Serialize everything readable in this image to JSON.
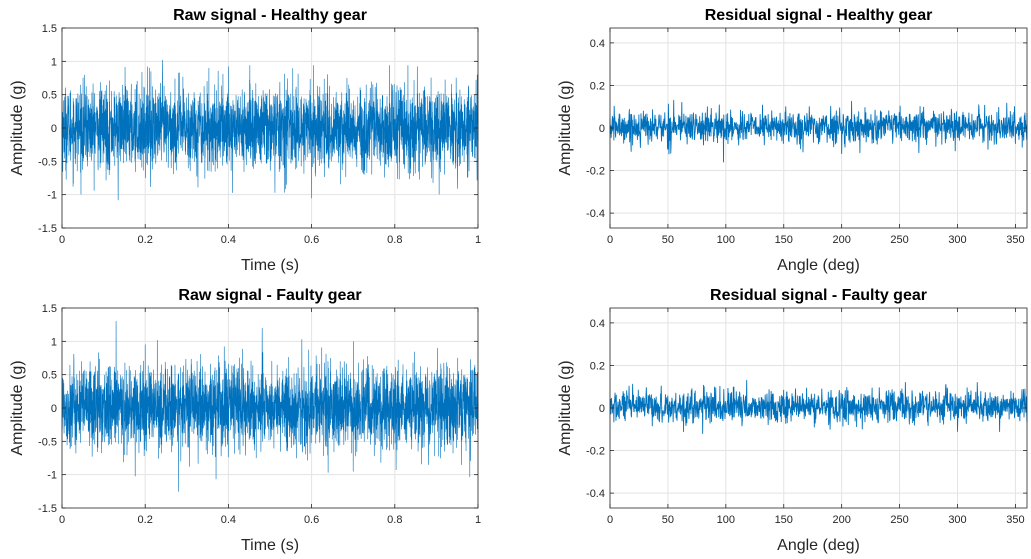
{
  "colors": {
    "series": "#0072BD",
    "grid": "#e3e3e3",
    "axis": "#262626",
    "background": "#ffffff"
  },
  "chart_data": [
    {
      "type": "line",
      "title": "Raw signal - Healthy gear",
      "xlabel": "Time (s)",
      "ylabel": "Amplitude (g)",
      "xlim": [
        0,
        1
      ],
      "ylim": [
        -1.5,
        1.5
      ],
      "xticks": [
        "0",
        "0.2",
        "0.4",
        "0.6",
        "0.8",
        "1"
      ],
      "yticks": [
        "-1.5",
        "-1",
        "-0.5",
        "0",
        "0.5",
        "1",
        "1.5"
      ],
      "grid": true,
      "series": [
        {
          "values_desc": "dense noise",
          "envelope": {
            "p95": [
              -0.6,
              0.6
            ],
            "max": 1.02,
            "min": -1.08
          },
          "peaks": [
            [
              0.242,
              1.02
            ],
            [
              0.4,
              0.92
            ],
            [
              0.135,
              -1.08
            ],
            [
              0.6,
              -1.05
            ],
            [
              0.41,
              -0.97
            ],
            [
              0.21,
              0.9
            ]
          ]
        }
      ]
    },
    {
      "type": "line",
      "title": "Residual signal - Healthy gear",
      "xlabel": "Angle (deg)",
      "ylabel": "Amplitude (g)",
      "xlim": [
        0,
        360
      ],
      "ylim": [
        -0.47,
        0.47
      ],
      "xticks": [
        "0",
        "50",
        "100",
        "150",
        "200",
        "250",
        "300",
        "350"
      ],
      "yticks": [
        "-0.4",
        "-0.2",
        "0",
        "0.2",
        "0.4"
      ],
      "grid": true,
      "series": [
        {
          "values_desc": "noise",
          "envelope": {
            "p95": [
              -0.07,
              0.08
            ],
            "max": 0.16,
            "min": -0.16
          },
          "peaks": [
            [
              98,
              0.16
            ],
            [
              98,
              -0.16
            ],
            [
              55,
              0.13
            ],
            [
              50,
              -0.1
            ],
            [
              62,
              0.12
            ],
            [
              200,
              -0.12
            ]
          ]
        }
      ]
    },
    {
      "type": "line",
      "title": "Raw signal - Faulty gear",
      "xlabel": "Time (s)",
      "ylabel": "Amplitude (g)",
      "xlim": [
        0,
        1
      ],
      "ylim": [
        -1.5,
        1.5
      ],
      "xticks": [
        "0",
        "0.2",
        "0.4",
        "0.6",
        "0.8",
        "1"
      ],
      "yticks": [
        "-1.5",
        "-1",
        "-0.5",
        "0",
        "0.5",
        "1",
        "1.5"
      ],
      "grid": true,
      "series": [
        {
          "values_desc": "dense noise",
          "envelope": {
            "p95": [
              -0.6,
              0.62
            ],
            "max": 1.3,
            "min": -1.25
          },
          "peaks": [
            [
              0.13,
              1.3
            ],
            [
              0.28,
              -1.25
            ],
            [
              0.2,
              0.95
            ],
            [
              0.7,
              -0.95
            ],
            [
              0.39,
              0.92
            ],
            [
              0.96,
              -0.85
            ]
          ]
        }
      ]
    },
    {
      "type": "line",
      "title": "Residual signal - Faulty gear",
      "xlabel": "Angle (deg)",
      "ylabel": "Amplitude (g)",
      "xlim": [
        0,
        360
      ],
      "ylim": [
        -0.47,
        0.47
      ],
      "xticks": [
        "0",
        "50",
        "100",
        "150",
        "200",
        "250",
        "300",
        "350"
      ],
      "yticks": [
        "-0.4",
        "-0.2",
        "0",
        "0.2",
        "0.4"
      ],
      "grid": true,
      "series": [
        {
          "values_desc": "noise",
          "envelope": {
            "p95": [
              -0.07,
              0.08
            ],
            "max": 0.13,
            "min": -0.12
          },
          "peaks": [
            [
              118,
              0.13
            ],
            [
              255,
              0.12
            ],
            [
              80,
              -0.12
            ],
            [
              300,
              -0.11
            ],
            [
              290,
              0.11
            ],
            [
              190,
              -0.1
            ]
          ]
        }
      ]
    }
  ]
}
